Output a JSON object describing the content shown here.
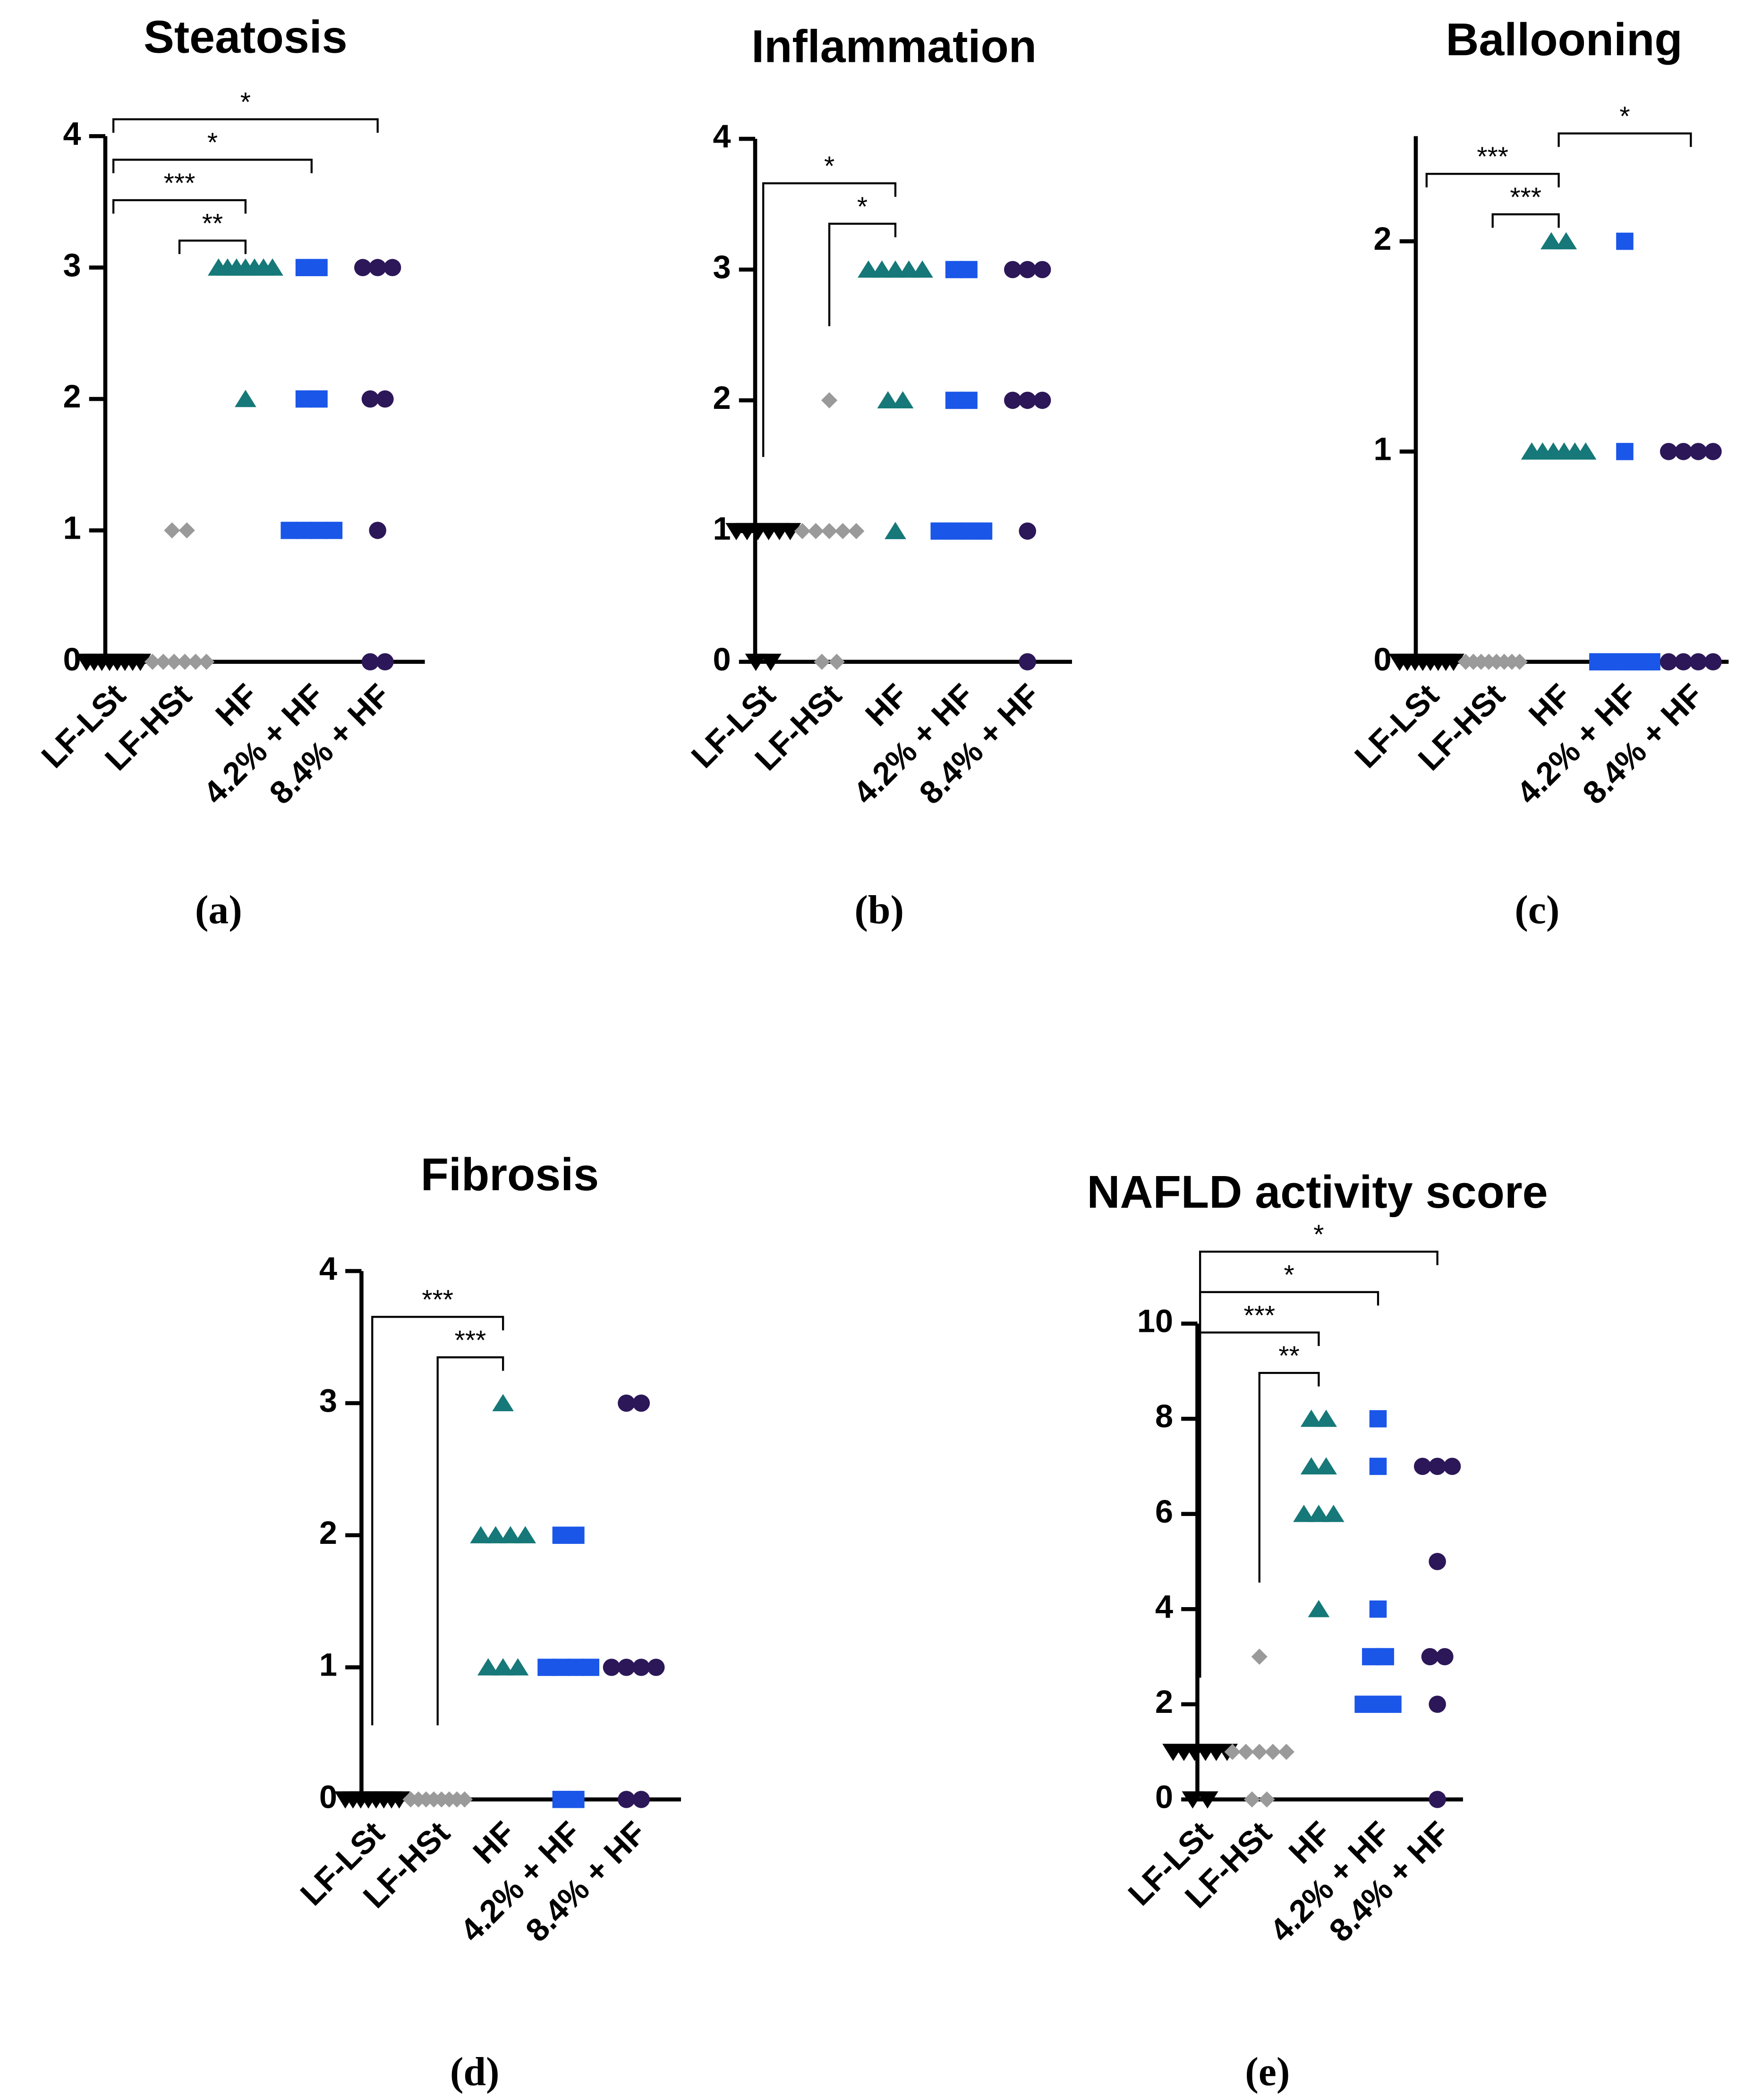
{
  "chart_data": [
    {
      "type": "dot",
      "title": "Steatosis",
      "label": "(a)",
      "categories": [
        "LF-LSt",
        "LF-HSt",
        "HF",
        "4.2% + HF",
        "8.4% + HF"
      ],
      "values": [
        [
          0,
          0,
          0,
          0,
          0,
          0,
          0,
          0
        ],
        [
          1,
          1,
          0,
          0,
          0,
          0,
          0,
          0
        ],
        [
          3,
          3,
          3,
          3,
          3,
          3,
          3,
          2
        ],
        [
          3,
          3,
          2,
          2,
          1,
          1,
          1,
          1
        ],
        [
          3,
          3,
          3,
          2,
          2,
          1,
          0,
          0
        ]
      ],
      "colors": [
        "#000000",
        "#9a9a9a",
        "#167878",
        "#1a56e8",
        "#2c1758"
      ],
      "markers": [
        "triangle-down",
        "diamond",
        "triangle",
        "square",
        "circle"
      ],
      "ylim": [
        0,
        4
      ],
      "yticks": [
        0,
        1,
        2,
        3,
        4
      ],
      "bracket_legs": "short",
      "brackets": [
        {
          "label": "**",
          "from": 1,
          "to": 2
        },
        {
          "label": "***",
          "from": 0,
          "to": 2
        },
        {
          "label": "*",
          "from": 0,
          "to": 3
        },
        {
          "label": "*",
          "from": 0,
          "to": 4
        }
      ]
    },
    {
      "type": "dot",
      "title": "Inflammation",
      "label": "(b)",
      "categories": [
        "LF-LSt",
        "LF-HSt",
        "HF",
        "4.2% + HF",
        "8.4% + HF"
      ],
      "values": [
        [
          1,
          1,
          1,
          1,
          1,
          1,
          0,
          0
        ],
        [
          2,
          1,
          1,
          1,
          1,
          1,
          0,
          0
        ],
        [
          3,
          3,
          3,
          3,
          3,
          2,
          2,
          1
        ],
        [
          3,
          3,
          2,
          2,
          1,
          1,
          1,
          1
        ],
        [
          3,
          3,
          3,
          2,
          2,
          2,
          1,
          0
        ]
      ],
      "colors": [
        "#000000",
        "#9a9a9a",
        "#167878",
        "#1a56e8",
        "#2c1758"
      ],
      "markers": [
        "triangle-down",
        "diamond",
        "triangle",
        "square",
        "circle"
      ],
      "ylim": [
        0,
        4
      ],
      "yticks": [
        0,
        1,
        2,
        3,
        4
      ],
      "bracket_legs": "long",
      "brackets": [
        {
          "label": "*",
          "from": 1,
          "to": 2
        },
        {
          "label": "*",
          "from": 0,
          "to": 2
        }
      ]
    },
    {
      "type": "dot",
      "title": "Ballooning",
      "label": "(c)",
      "categories": [
        "LF-LSt",
        "LF-HSt",
        "HF",
        "4.2% + HF",
        "8.4% + HF"
      ],
      "values": [
        [
          0,
          0,
          0,
          0,
          0,
          0,
          0,
          0
        ],
        [
          0,
          0,
          0,
          0,
          0,
          0,
          0,
          0
        ],
        [
          2,
          2,
          1,
          1,
          1,
          1,
          1,
          1
        ],
        [
          2,
          1,
          0,
          0,
          0,
          0,
          0,
          0
        ],
        [
          1,
          1,
          1,
          1,
          0,
          0,
          0,
          0
        ]
      ],
      "colors": [
        "#000000",
        "#9a9a9a",
        "#167878",
        "#1a56e8",
        "#2c1758"
      ],
      "markers": [
        "triangle-down",
        "diamond",
        "triangle",
        "square",
        "circle"
      ],
      "ylim": [
        0,
        2.5
      ],
      "yticks": [
        0,
        1,
        2
      ],
      "bracket_legs": "short",
      "brackets": [
        {
          "label": "***",
          "from": 1,
          "to": 2
        },
        {
          "label": "***",
          "from": 0,
          "to": 2
        },
        {
          "label": "*",
          "from": 2,
          "to": 4
        }
      ]
    },
    {
      "type": "dot",
      "title": "Fibrosis",
      "label": "(d)",
      "categories": [
        "LF-LSt",
        "LF-HSt",
        "HF",
        "4.2% + HF",
        "8.4% + HF"
      ],
      "values": [
        [
          0,
          0,
          0,
          0,
          0,
          0,
          0,
          0
        ],
        [
          0,
          0,
          0,
          0,
          0,
          0,
          0,
          0
        ],
        [
          3,
          2,
          2,
          2,
          2,
          1,
          1,
          1
        ],
        [
          2,
          2,
          1,
          1,
          1,
          1,
          0,
          0
        ],
        [
          3,
          3,
          1,
          1,
          1,
          1,
          0,
          0
        ]
      ],
      "colors": [
        "#000000",
        "#9a9a9a",
        "#167878",
        "#1a56e8",
        "#2c1758"
      ],
      "markers": [
        "triangle-down",
        "diamond",
        "triangle",
        "square",
        "circle"
      ],
      "ylim": [
        0,
        4
      ],
      "yticks": [
        0,
        1,
        2,
        3,
        4
      ],
      "bracket_legs": "long",
      "brackets": [
        {
          "label": "***",
          "from": 1,
          "to": 2
        },
        {
          "label": "***",
          "from": 0,
          "to": 2
        }
      ]
    },
    {
      "type": "dot",
      "title": "NAFLD activity score",
      "label": "(e)",
      "categories": [
        "LF-LSt",
        "LF-HSt",
        "HF",
        "4.2% + HF",
        "8.4% + HF"
      ],
      "values": [
        [
          1,
          1,
          1,
          1,
          1,
          1,
          0,
          0
        ],
        [
          3,
          1,
          1,
          1,
          1,
          1,
          0,
          0
        ],
        [
          8,
          8,
          7,
          7,
          6,
          6,
          6,
          4
        ],
        [
          8,
          7,
          4,
          3,
          3,
          2,
          2,
          2
        ],
        [
          7,
          7,
          7,
          5,
          3,
          3,
          2,
          0
        ]
      ],
      "colors": [
        "#000000",
        "#9a9a9a",
        "#167878",
        "#1a56e8",
        "#2c1758"
      ],
      "markers": [
        "triangle-down",
        "diamond",
        "triangle",
        "square",
        "circle"
      ],
      "ylim": [
        0,
        10
      ],
      "yticks": [
        0,
        2,
        4,
        6,
        8,
        10
      ],
      "bracket_legs": "long",
      "brackets": [
        {
          "label": "**",
          "from": 1,
          "to": 2
        },
        {
          "label": "***",
          "from": 0,
          "to": 2
        },
        {
          "label": "*",
          "from": 0,
          "to": 3
        },
        {
          "label": "*",
          "from": 0,
          "to": 4
        }
      ]
    }
  ]
}
